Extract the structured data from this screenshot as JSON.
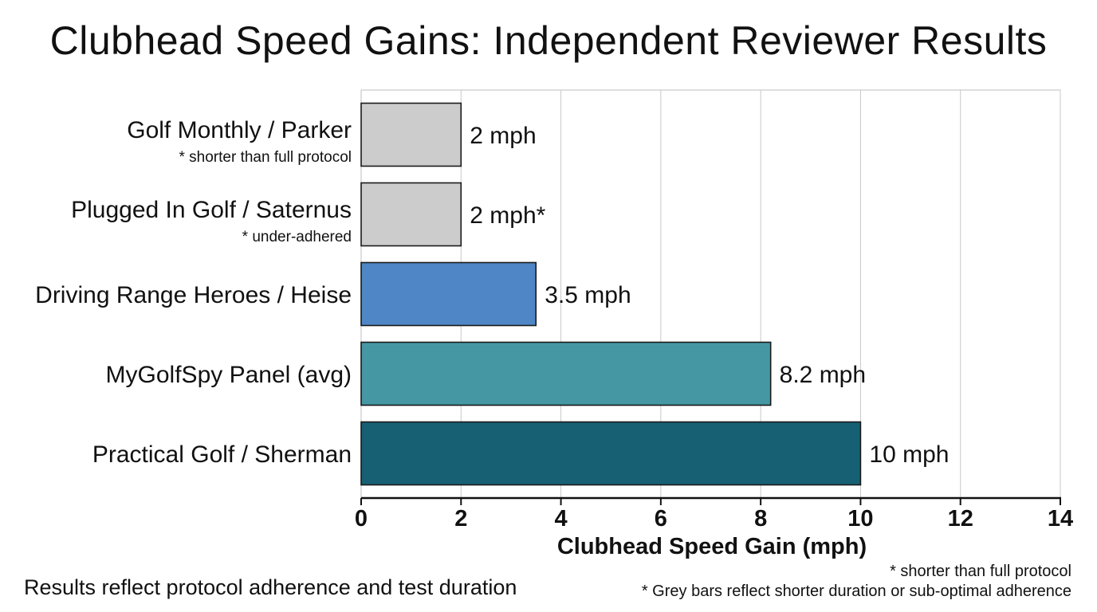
{
  "chart_data": {
    "type": "bar",
    "orientation": "horizontal",
    "title": "Clubhead Speed Gains: Independent Reviewer Results",
    "xlabel": "Clubhead Speed Gain (mph)",
    "ylabel": "",
    "xlim": [
      0,
      14
    ],
    "x_ticks": [
      0,
      2,
      4,
      6,
      8,
      10,
      12,
      14
    ],
    "grid": "vertical",
    "categories": [
      "Golf Monthly / Parker",
      "Plugged In Golf / Saternus",
      "Driving Range Heroes / Heise",
      "MyGolfSpy Panel (avg)",
      "Practical Golf / Sherman"
    ],
    "category_notes": [
      "* shorter than full protocol",
      "* under-adhered",
      "",
      "",
      ""
    ],
    "values": [
      2,
      2,
      3.5,
      8.2,
      10
    ],
    "value_labels": [
      "2 mph",
      "2 mph*",
      "3.5 mph",
      "8.2 mph",
      "10 mph"
    ],
    "bar_colors": [
      "#cccccc",
      "#cccccc",
      "#4f86c6",
      "#4598a3",
      "#176073"
    ]
  },
  "footnotes": {
    "left": "Results reflect protocol adherence and test duration",
    "right_1": "* shorter than full protocol",
    "right_2": "* Grey bars reflect shorter duration or sub-optimal adherence"
  }
}
